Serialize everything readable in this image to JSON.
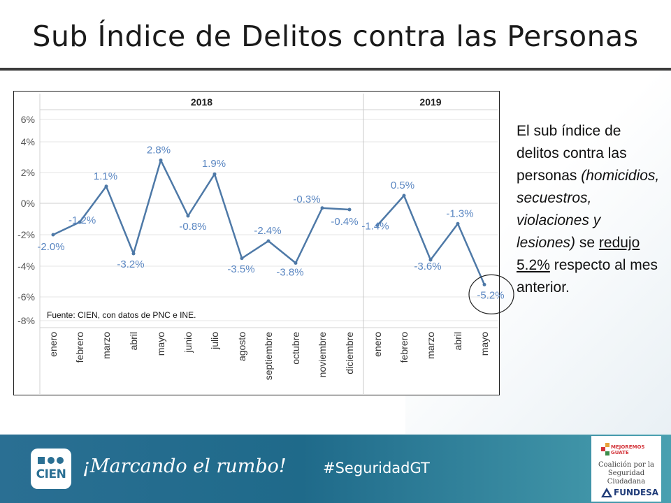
{
  "title": "Sub Índice de Delitos contra las Personas",
  "chart_data": {
    "type": "line",
    "panels": [
      {
        "label": "2018",
        "categories": [
          "enero",
          "febrero",
          "marzo",
          "abril",
          "mayo",
          "junio",
          "julio",
          "agosto",
          "septiembre",
          "octubre",
          "noviembre",
          "diciembre"
        ],
        "values": [
          -2.0,
          -1.2,
          1.1,
          -3.2,
          2.8,
          -0.8,
          1.9,
          -3.5,
          -2.4,
          -3.8,
          -0.3,
          -0.4
        ],
        "labels": [
          "-2.0%",
          "-1.2%",
          "1.1%",
          "-3.2%",
          "2.8%",
          "-0.8%",
          "1.9%",
          "-3.5%",
          "-2.4%",
          "-3.8%",
          "-0.3%",
          "-0.4%"
        ]
      },
      {
        "label": "2019",
        "categories": [
          "enero",
          "febrero",
          "marzo",
          "abril",
          "mayo"
        ],
        "values": [
          -1.4,
          0.5,
          -3.6,
          -1.3,
          -5.2
        ],
        "labels": [
          "-1.4%",
          "0.5%",
          "-3.6%",
          "-1.3%",
          "-5.2%"
        ]
      }
    ],
    "yticks": [
      "6%",
      "4%",
      "2%",
      "0%",
      "-2%",
      "-4%",
      "-6%",
      "-8%"
    ],
    "ytick_values": [
      6,
      4,
      2,
      0,
      -2,
      -4,
      -6,
      -8
    ],
    "ylim": [
      -8,
      6
    ],
    "source_note": "Fuente: CIEN, con datos de PNC e INE.",
    "highlight": "last point (mayo 2019) circled",
    "colors": {
      "line": "#4e79a7",
      "label": "#5b87c2"
    }
  },
  "side_text": {
    "line1": "El sub índice de delitos contra las personas ",
    "italic": "(homicidios, secuestros, violaciones y lesiones)",
    "line2": " se ",
    "underlined": "redujo 5.2%",
    "line3": " respecto al mes anterior."
  },
  "footer": {
    "logo_text": "CIEN",
    "slogan": "¡Marcando el rumbo!",
    "hashtag": "#SeguridadGT",
    "partner_top": "MEJOREMOS\nGUATE",
    "partner_mid": "Coalición por la Seguridad Ciudadana",
    "partner_bottom": "FUNDESA"
  }
}
